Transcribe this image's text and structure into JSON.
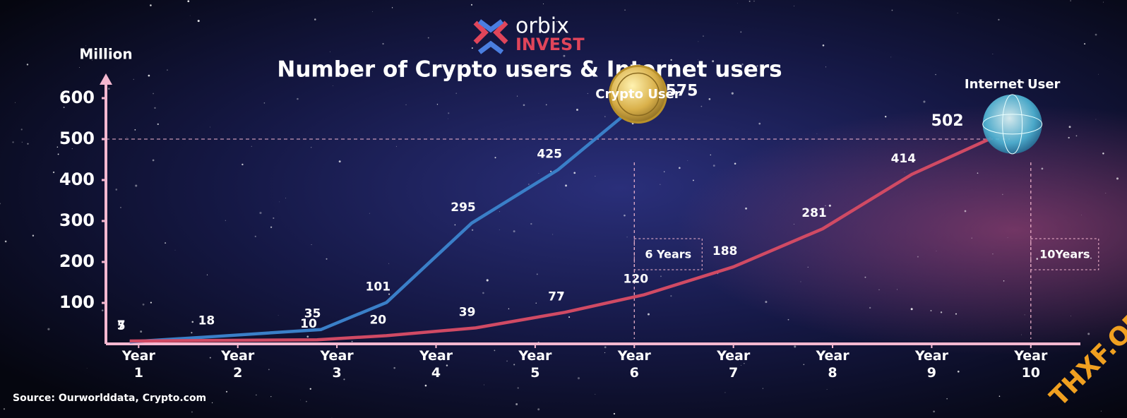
{
  "logo": {
    "name": "orbix",
    "sub": "INVEST"
  },
  "watermark": "THXF.ORG",
  "chart_data": {
    "type": "line",
    "title": "Number of Crypto users & Internet users",
    "y_label": "Million",
    "source": "Source: Ourworlddata, Crypto.com",
    "xlim": [
      0.67,
      10.5
    ],
    "xticks": [
      {
        "value": 1,
        "label": "Year 1"
      },
      {
        "value": 2,
        "label": "Year 2"
      },
      {
        "value": 3,
        "label": "Year 3"
      },
      {
        "value": 4,
        "label": "Year 4"
      },
      {
        "value": 5,
        "label": "Year 5"
      },
      {
        "value": 6,
        "label": "Year 6"
      },
      {
        "value": 7,
        "label": "Year 7"
      },
      {
        "value": 8,
        "label": "Year 8"
      },
      {
        "value": 9,
        "label": "Year 9"
      },
      {
        "value": 10,
        "label": "Year 10"
      }
    ],
    "ylim": [
      0,
      650
    ],
    "yticks": [
      100,
      200,
      300,
      400,
      500,
      600
    ],
    "series": [
      {
        "name": "Crypto User",
        "color": "#3a7fc8",
        "x": [
          0.91,
          1.77,
          2.84,
          3.5,
          4.36,
          5.23,
          5.98
        ],
        "values": [
          5,
          18,
          35,
          101,
          295,
          425,
          575
        ]
      },
      {
        "name": "Internet User",
        "color": "#d04a64",
        "x": [
          0.91,
          2.8,
          3.5,
          4.4,
          5.3,
          6.1,
          7.0,
          7.9,
          8.8,
          9.6
        ],
        "values": [
          7,
          10,
          20,
          39,
          77,
          120,
          188,
          281,
          414,
          502
        ]
      }
    ],
    "annotations": [
      {
        "text": "6 Years",
        "x": 6
      },
      {
        "text": "10Years",
        "x": 10
      }
    ]
  }
}
